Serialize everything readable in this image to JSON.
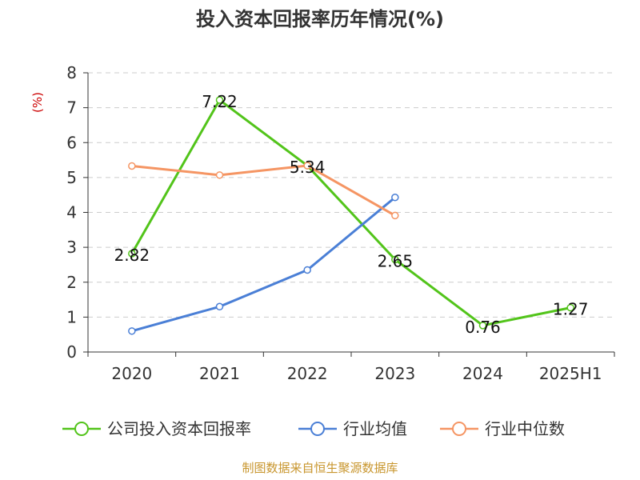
{
  "chart_data": {
    "type": "line",
    "title": "投入资本回报率历年情况(%)",
    "y_unit": "(%)",
    "categories": [
      "2020",
      "2021",
      "2022",
      "2023",
      "2024",
      "2025H1"
    ],
    "ylim": [
      0,
      8
    ],
    "yticks": [
      0,
      1,
      2,
      3,
      4,
      5,
      6,
      7,
      8
    ],
    "grid": true,
    "legend_position": "bottom",
    "series": [
      {
        "name": "公司投入资本回报率",
        "color": "#52c41a",
        "values": [
          2.82,
          7.22,
          5.34,
          2.65,
          0.76,
          1.27
        ],
        "labels": [
          "2.82",
          "7.22",
          "5.34",
          "2.65",
          "0.76",
          "1.27"
        ]
      },
      {
        "name": "行业均值",
        "color": "#4a7fd6",
        "values": [
          0.6,
          1.3,
          2.35,
          4.43,
          null,
          null
        ],
        "labels": []
      },
      {
        "name": "行业中位数",
        "color": "#f59563",
        "values": [
          5.33,
          5.07,
          5.34,
          3.91,
          null,
          null
        ],
        "labels": []
      }
    ],
    "source": "制图数据来自恒生聚源数据库"
  }
}
